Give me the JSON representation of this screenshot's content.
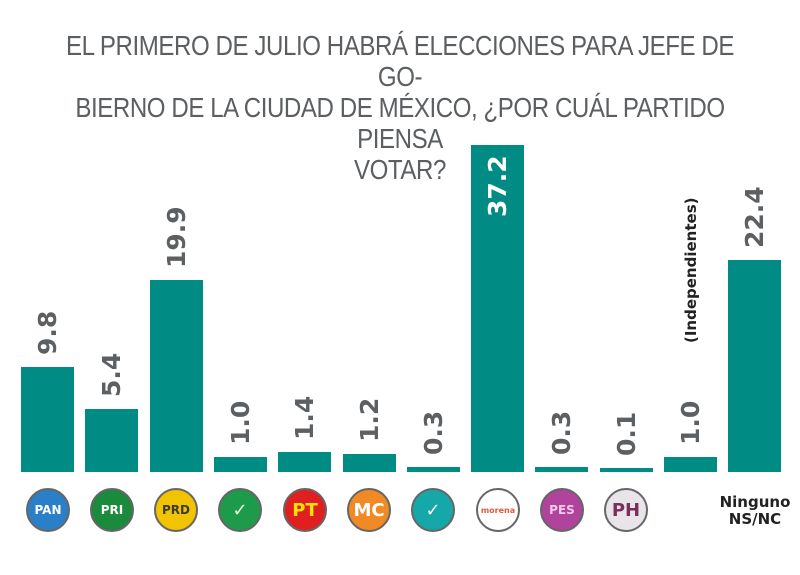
{
  "chart_data": {
    "type": "bar",
    "title_lines": [
      "EL PRIMERO DE JULIO HABRÁ ELECCIONES PARA JEFE DE GO-",
      "BIERNO DE LA CIUDAD DE MÉXICO, ¿POR CUÁL PARTIDO PIENSA",
      "VOTAR?"
    ],
    "xlabel": "",
    "ylabel": "",
    "ylim": [
      0,
      37.2
    ],
    "grid": false,
    "legend": "none",
    "bar_color": "#008b84",
    "categories": [
      "PAN",
      "PRI",
      "PRD",
      "PVEM",
      "PT",
      "Movimiento Ciudadano",
      "Nueva Alianza",
      "Morena",
      "Encuentro Social",
      "Humanista",
      "Independientes",
      "Ninguno NS/NC"
    ],
    "values": [
      9.8,
      5.4,
      19.9,
      1.0,
      1.4,
      1.2,
      0.3,
      37.2,
      0.3,
      0.1,
      1.0,
      22.4
    ],
    "value_labels": [
      "9.8",
      "5.4",
      "19.9",
      "1.0",
      "1.4",
      "1.2",
      "0.3",
      "37.2",
      "0.3",
      "0.1",
      "1.0",
      "22.4"
    ],
    "annotations": [
      {
        "category": "Independientes",
        "text": "(Independientes)"
      }
    ],
    "category_text_label": {
      "category": "Ninguno NS/NC",
      "lines": [
        "Ninguno",
        "NS/NC"
      ]
    }
  },
  "logos": [
    {
      "name": "pan-logo-icon",
      "text": "PAN",
      "bg": "#2b7fc6",
      "fg": "#ffffff"
    },
    {
      "name": "pri-logo-icon",
      "text": "PRI",
      "bg": "#1a8a3c",
      "fg": "#ffffff"
    },
    {
      "name": "prd-logo-icon",
      "text": "PRD",
      "bg": "#f2c300",
      "fg": "#3b3b3b"
    },
    {
      "name": "pvem-logo-icon",
      "text": "✓",
      "bg": "#1e9a4b",
      "fg": "#e8ffe8"
    },
    {
      "name": "pt-logo-icon",
      "text": "PT",
      "bg": "#e02020",
      "fg": "#ffe300"
    },
    {
      "name": "mc-logo-icon",
      "text": "MC",
      "bg": "#f08a24",
      "fg": "#ffffff"
    },
    {
      "name": "nueva-alianza-logo-icon",
      "text": "✓",
      "bg": "#16a7a8",
      "fg": "#ffffff"
    },
    {
      "name": "morena-logo-icon",
      "text": "morena",
      "bg": "#ffffff",
      "fg": "#e05a40"
    },
    {
      "name": "encuentro-social-logo-icon",
      "text": "PES",
      "bg": "#b0439b",
      "fg": "#f4c8ea"
    },
    {
      "name": "humanista-logo-icon",
      "text": "PH",
      "bg": "#e9e3ea",
      "fg": "#7a2e5a"
    }
  ]
}
